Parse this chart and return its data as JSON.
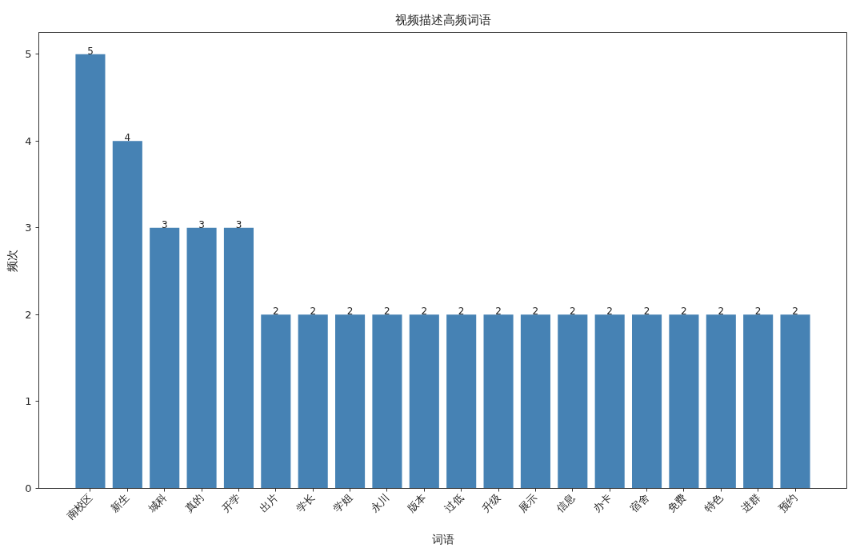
{
  "chart_data": {
    "type": "bar",
    "title": "视频描述高频词语",
    "xlabel": "词语",
    "ylabel": "频次",
    "categories": [
      "南校区",
      "新生",
      "城科",
      "真的",
      "开学",
      "出片",
      "学长",
      "学姐",
      "永川",
      "版本",
      "过低",
      "升级",
      "展示",
      "信息",
      "办卡",
      "宿舍",
      "免费",
      "特色",
      "进群",
      "预约"
    ],
    "values": [
      5,
      4,
      3,
      3,
      3,
      2,
      2,
      2,
      2,
      2,
      2,
      2,
      2,
      2,
      2,
      2,
      2,
      2,
      2,
      2
    ],
    "color": "#4682b4",
    "ylim": [
      0,
      5.25
    ],
    "yticks": [
      0,
      1,
      2,
      3,
      4,
      5
    ],
    "grid": false,
    "data_labels": true
  }
}
